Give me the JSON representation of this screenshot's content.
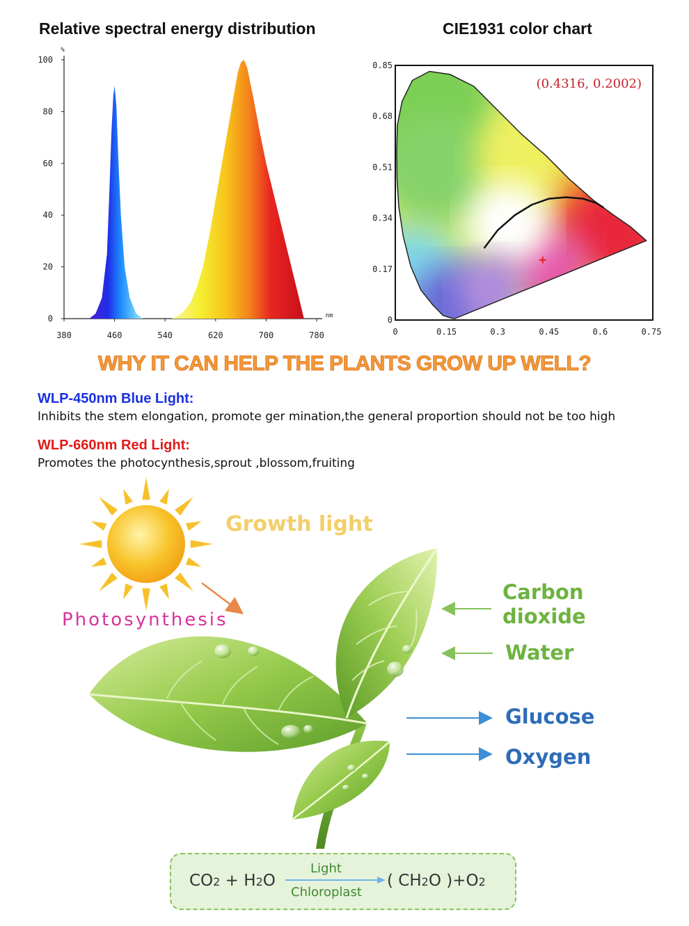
{
  "headings": {
    "spectral": "Relative spectral energy distribution",
    "cie": "CIE1931 color chart",
    "why": "WHY IT CAN HELP THE PLANTS GROW UP WELL?"
  },
  "chart_data": [
    {
      "type": "area",
      "title": "Relative spectral energy distribution",
      "xlabel": "nm",
      "ylabel": "%",
      "xlim": [
        380,
        780
      ],
      "ylim": [
        0,
        100
      ],
      "x_ticks": [
        "380",
        "460",
        "540",
        "620",
        "700",
        "780"
      ],
      "y_ticks": [
        "0",
        "20",
        "40",
        "60",
        "80",
        "100"
      ],
      "grid": false,
      "series": [
        {
          "color": "#2a3ad8",
          "x": [
            420,
            430,
            440,
            448,
            452,
            455,
            458,
            460,
            463,
            466,
            470,
            476,
            484,
            494,
            505
          ],
          "y": [
            0,
            2,
            8,
            25,
            50,
            72,
            86,
            90,
            82,
            62,
            40,
            20,
            8,
            2,
            0
          ]
        },
        {
          "color": "#f0b020",
          "x": [
            550,
            560,
            570,
            580,
            590,
            600,
            610,
            620,
            630,
            640,
            650,
            655,
            660,
            665,
            670,
            680,
            690,
            700,
            710,
            720,
            730,
            740,
            750,
            760
          ],
          "y": [
            0,
            1,
            3,
            6,
            12,
            20,
            32,
            46,
            60,
            74,
            88,
            95,
            99,
            100,
            97,
            85,
            72,
            60,
            50,
            40,
            30,
            20,
            10,
            0
          ]
        }
      ]
    },
    {
      "type": "scatter",
      "title": "CIE1931 color chart",
      "xlim": [
        0,
        0.75
      ],
      "ylim": [
        0,
        0.85
      ],
      "x_ticks": [
        "0",
        "0.15",
        "0.3",
        "0.45",
        "0.6",
        "0.75"
      ],
      "y_ticks": [
        "0",
        "0.17",
        "0.34",
        "0.51",
        "0.68",
        "0.85"
      ],
      "point_label": "(0.4316, 0.2002)",
      "point": {
        "x": 0.4316,
        "y": 0.2002,
        "color": "#e0202a"
      },
      "locus": {
        "x": [
          0.175,
          0.165,
          0.14,
          0.11,
          0.075,
          0.045,
          0.023,
          0.01,
          0.005,
          0.004,
          0.006,
          0.02,
          0.05,
          0.1,
          0.16,
          0.23,
          0.3,
          0.37,
          0.44,
          0.51,
          0.58,
          0.64,
          0.69,
          0.735
        ],
        "y": [
          0.005,
          0.006,
          0.015,
          0.05,
          0.1,
          0.18,
          0.28,
          0.38,
          0.47,
          0.56,
          0.65,
          0.73,
          0.8,
          0.83,
          0.82,
          0.78,
          0.7,
          0.62,
          0.55,
          0.47,
          0.4,
          0.35,
          0.31,
          0.265
        ]
      },
      "planckian_locus": {
        "x": [
          0.26,
          0.3,
          0.35,
          0.4,
          0.45,
          0.5,
          0.55,
          0.59,
          0.61
        ],
        "y": [
          0.24,
          0.3,
          0.35,
          0.385,
          0.405,
          0.41,
          0.405,
          0.39,
          0.375
        ]
      }
    }
  ],
  "lights": [
    {
      "title": "WLP-450nm Blue Light:",
      "description": "Inhibits the stem elongation, promote ger mination,the general proportion should not be too high",
      "color": "#1a2fe0"
    },
    {
      "title": "WLP-660nm Red Light:",
      "description": "Promotes the photocynthesis,sprout ,blossom,fruiting",
      "color": "#e01a1a"
    }
  ],
  "diagram": {
    "growth_light": "Growth light",
    "photosynthesis": "Photosynthesis",
    "inputs": [
      "Carbon",
      "dioxide",
      "Water"
    ],
    "outputs": [
      "Glucose",
      "Oxygen"
    ]
  },
  "equation": {
    "reactant_1": "CO",
    "reactant_1_sub": "2",
    "plus": "+",
    "reactant_2": "H",
    "reactant_2_sub": "2",
    "reactant_2_end": "O",
    "condition_top": "Light",
    "condition_bottom": "Chloroplast",
    "product_1": "( CH",
    "product_1_sub": "2",
    "product_1_end": "O )",
    "plus_2": "+O",
    "product_2_sub": "2"
  },
  "colors": {
    "why_orange": "#f39a3a",
    "leaf_green": "#7cbb3a",
    "sun_yellow": "#f6b81a",
    "arrow_blue": "#3e8fd6",
    "arrow_green": "#86c25a"
  }
}
